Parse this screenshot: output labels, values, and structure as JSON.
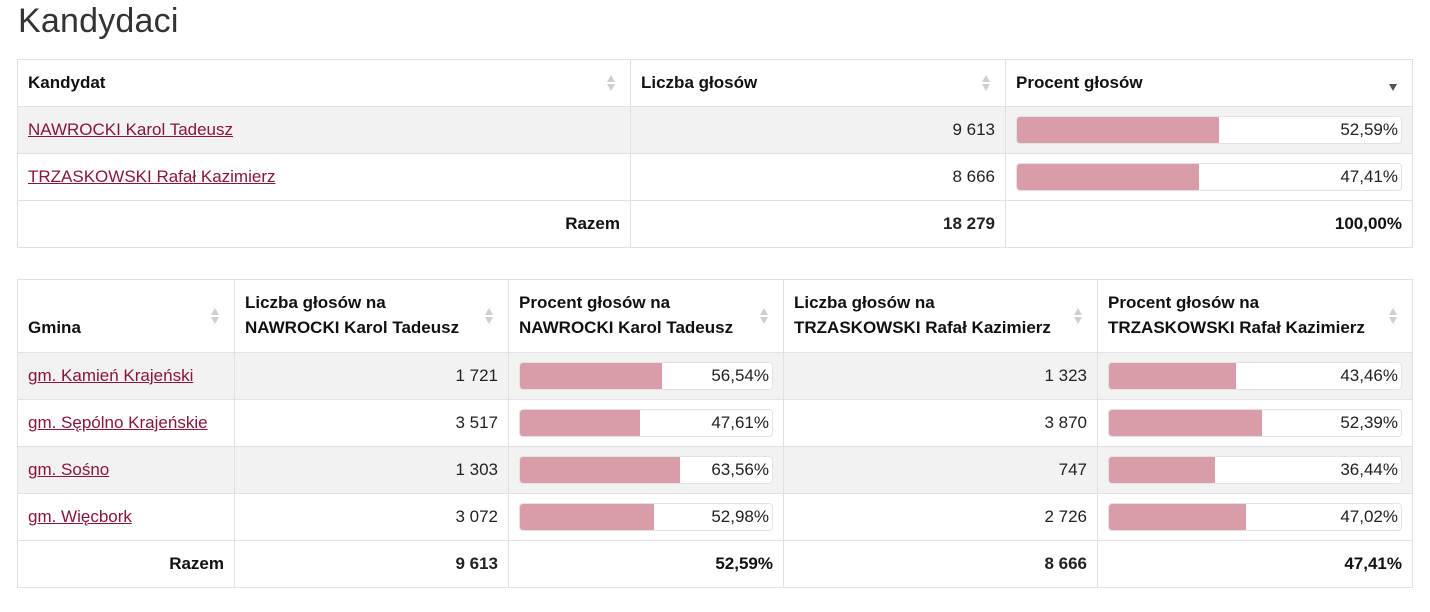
{
  "page": {
    "title": "Kandydaci"
  },
  "candidates_table": {
    "headers": [
      "Kandydat",
      "Liczba głosów",
      "Procent głosów"
    ],
    "sorted_column": 2,
    "rows": [
      {
        "name": "NAWROCKI Karol Tadeusz",
        "votes": "9 613",
        "percent_label": "52,59%",
        "percent": 52.59
      },
      {
        "name": "TRZASKOWSKI Rafał Kazimierz",
        "votes": "8 666",
        "percent_label": "47,41%",
        "percent": 47.41
      }
    ],
    "total": {
      "label": "Razem",
      "votes": "18 279",
      "percent_label": "100,00%"
    }
  },
  "gmina_table": {
    "headers": [
      "Gmina",
      "Liczba głosów na NAWROCKI Karol Tadeusz",
      "Procent głosów na NAWROCKI Karol Tadeusz",
      "Liczba głosów na TRZASKOWSKI Rafał Kazimierz",
      "Procent głosów na TRZASKOWSKI Rafał Kazimierz"
    ],
    "rows": [
      {
        "name": "gm. Kamień Krajeński",
        "n_votes": "1 721",
        "n_pct_label": "56,54%",
        "n_pct": 56.54,
        "t_votes": "1 323",
        "t_pct_label": "43,46%",
        "t_pct": 43.46
      },
      {
        "name": "gm. Sępólno Krajeńskie",
        "n_votes": "3 517",
        "n_pct_label": "47,61%",
        "n_pct": 47.61,
        "t_votes": "3 870",
        "t_pct_label": "52,39%",
        "t_pct": 52.39
      },
      {
        "name": "gm. Sośno",
        "n_votes": "1 303",
        "n_pct_label": "63,56%",
        "n_pct": 63.56,
        "t_votes": "747",
        "t_pct_label": "36,44%",
        "t_pct": 36.44
      },
      {
        "name": "gm. Więcbork",
        "n_votes": "3 072",
        "n_pct_label": "52,98%",
        "n_pct": 52.98,
        "t_votes": "2 726",
        "t_pct_label": "47,02%",
        "t_pct": 47.02
      }
    ],
    "total": {
      "label": "Razem",
      "n_votes": "9 613",
      "n_pct_label": "52,59%",
      "t_votes": "8 666",
      "t_pct_label": "47,41%"
    }
  },
  "colors": {
    "bar_fill": "#d99ca9",
    "link": "#8a1538",
    "stripe": "#f2f2f2"
  },
  "icons": {
    "sort": "sort-arrows-icon"
  }
}
